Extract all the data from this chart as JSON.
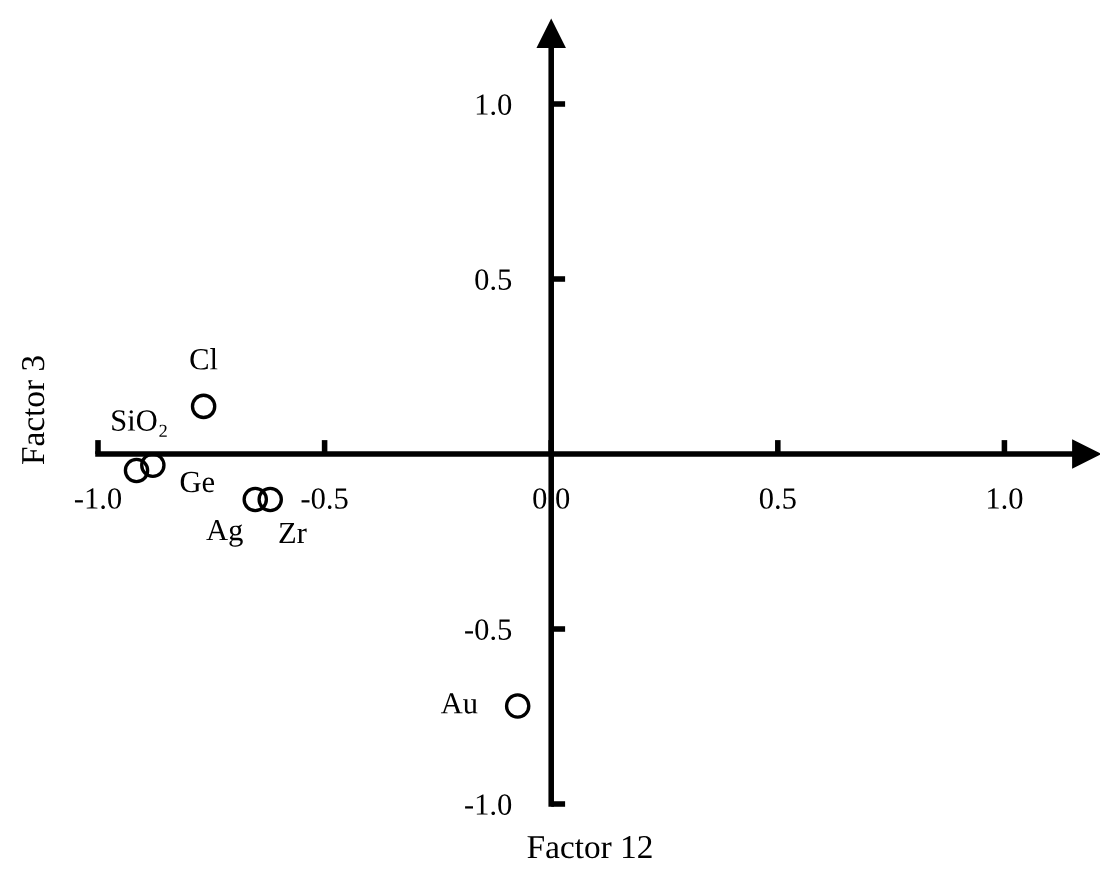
{
  "chart_data": {
    "type": "scatter",
    "xlabel": "Factor 12",
    "ylabel": "Factor 3",
    "x": [
      -0.767,
      -0.915,
      -0.879,
      -0.653,
      -0.62,
      -0.074
    ],
    "values": [
      0.136,
      -0.047,
      -0.032,
      -0.13,
      -0.13,
      -0.72
    ],
    "color": "#000000",
    "marker": "circle",
    "grid": false,
    "xlim": [
      -1.0,
      1.18
    ],
    "ylim": [
      -1.0,
      1.2
    ],
    "xticks": [
      {
        "value": -1.0,
        "label": "-1.0"
      },
      {
        "value": -0.5,
        "label": "-0.5"
      },
      {
        "value": 0,
        "label": "0.0"
      },
      {
        "value": 0.5,
        "label": "0.5"
      },
      {
        "value": 1.0,
        "label": "1.0"
      }
    ],
    "yticks": [
      {
        "value": -1.0,
        "label": "-1.0"
      },
      {
        "value": -0.5,
        "label": "-0.5"
      },
      {
        "value": 0.5,
        "label": "0.5"
      },
      {
        "value": 1.0,
        "label": "1.0"
      }
    ],
    "annotations": [
      {
        "text": "Cl",
        "x": -0.767,
        "y": 0.136
      },
      {
        "text": "SiO₂",
        "x": -0.915,
        "y": -0.047
      },
      {
        "text": "Ge",
        "x": -0.879,
        "y": -0.032
      },
      {
        "text": "Ag",
        "x": -0.653,
        "y": -0.13
      },
      {
        "text": "Zr",
        "x": -0.62,
        "y": -0.13
      },
      {
        "text": "Au",
        "x": -0.074,
        "y": -0.72
      }
    ]
  }
}
